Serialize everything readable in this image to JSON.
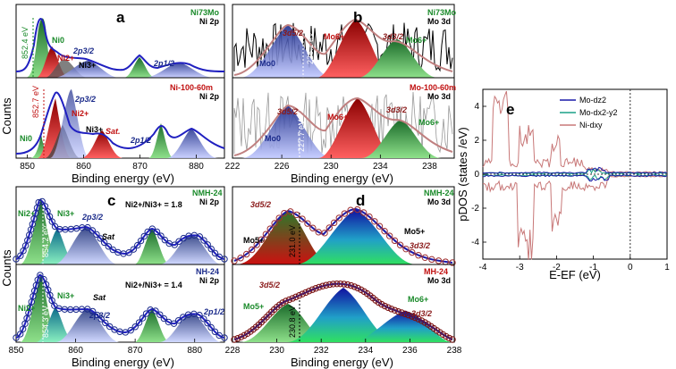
{
  "figure": {
    "counts_label": "Counts",
    "xlabel_be": "Binding energy (eV)"
  },
  "chart_data": [
    {
      "id": "a_top",
      "type": "line",
      "xlim": [
        848,
        885
      ],
      "reversed": false,
      "panel_label": "a",
      "sample": "Ni73Mo",
      "spectrum": "Ni 2p",
      "fit_peaks": [
        {
          "name": "Ni0",
          "center": 852.3
        },
        {
          "name": "Ni2+",
          "center": 853.8
        },
        {
          "name": "Ni3+",
          "center": 855.6
        },
        {
          "name": "2p3/2 sat",
          "center": 858.5
        },
        {
          "name": "2p1/2",
          "center": 869.6
        },
        {
          "name": "2p1/2 sat",
          "center": 876.0
        }
      ],
      "annotations": [
        "852.4 eV",
        "Ni0",
        "2p3/2",
        "Ni2+",
        "Ni3+",
        "2p1/2"
      ]
    },
    {
      "id": "a_bot",
      "type": "line",
      "xlim": [
        848,
        885
      ],
      "sample": "Ni-100-60m",
      "spectrum": "Ni 2p",
      "ticks": [
        850,
        860,
        870,
        880
      ],
      "fit_peaks": [
        {
          "name": "Ni0",
          "center": 852.7
        },
        {
          "name": "Ni2+",
          "center": 855.6
        },
        {
          "name": "Ni3+",
          "center": 857.0
        },
        {
          "name": "Sat.",
          "center": 861.2
        },
        {
          "name": "2p1/2",
          "center": 873.5
        },
        {
          "name": "2p1/2 sat",
          "center": 879.4
        }
      ],
      "annotations": [
        "852.7 eV",
        "Ni0",
        "2p3/2",
        "Ni2+",
        "Ni3+",
        "Sat.",
        "2p1/2"
      ]
    },
    {
      "id": "b_top",
      "type": "line",
      "xlim": [
        222,
        240
      ],
      "panel_label": "b",
      "sample": "Ni73Mo",
      "spectrum": "Mo 3d",
      "fit_peaks": [
        {
          "name": "Mo0",
          "center": 227.9
        },
        {
          "name": "Mo6+ 3d5/2",
          "center": 232.6
        },
        {
          "name": "Mo6+ 3d3/2",
          "center": 235.5
        }
      ],
      "annotations": [
        "Mo0",
        "3d5/2",
        "228.1 eV",
        "Mo6+",
        "3d3/2",
        "Mo6+"
      ]
    },
    {
      "id": "b_bot",
      "type": "line",
      "xlim": [
        222,
        240
      ],
      "sample": "Mo-100-60m",
      "spectrum": "Mo 3d",
      "ticks": [
        222,
        226,
        230,
        234,
        238
      ],
      "fit_peaks": [
        {
          "name": "Mo0",
          "center": 227.5
        },
        {
          "name": "Mo6+ 3d5/2",
          "center": 232.6
        },
        {
          "name": "Mo6+ 3d3/2",
          "center": 235.7
        }
      ],
      "annotations": [
        "3d5/2",
        "Mo0",
        "227.7 eV",
        "Mo6+",
        "3d3/2",
        "Mo6+"
      ]
    },
    {
      "id": "c_top",
      "type": "line",
      "xlim": [
        850,
        885
      ],
      "panel_label": "c",
      "sample": "NMH-24",
      "spectrum": "Ni 2p",
      "ratio_text": "Ni2+/Ni3+ = 1.8",
      "fit_peaks": [
        {
          "name": "Ni2+",
          "center": 854.0
        },
        {
          "name": "Ni3+",
          "center": 856.0
        },
        {
          "name": "Sat",
          "center": 861.0
        },
        {
          "name": "2p1/2",
          "center": 872.2
        },
        {
          "name": "2p1/2 sat",
          "center": 878.8
        }
      ],
      "annotations": [
        "Ni2+",
        "Ni3+",
        "2p3/2",
        "Sat",
        "854.2 eV"
      ]
    },
    {
      "id": "c_bot",
      "type": "line",
      "xlim": [
        850,
        885
      ],
      "sample": "NH-24",
      "spectrum": "Ni 2p",
      "ratio_text": "Ni2+/Ni3+ = 1.4",
      "ticks": [
        850,
        860,
        870,
        880
      ],
      "fit_peaks": [
        {
          "name": "Ni2+",
          "center": 854.0
        },
        {
          "name": "Ni3+",
          "center": 855.7
        },
        {
          "name": "Sat",
          "center": 861.0
        },
        {
          "name": "2p1/2",
          "center": 872.0
        },
        {
          "name": "2p1/2 sat",
          "center": 879.0
        }
      ],
      "annotations": [
        "Ni3+",
        "Sat",
        "Ni2+",
        "2p3/2",
        "2p1/2",
        "854.3 eV"
      ]
    },
    {
      "id": "d_top",
      "type": "scatter",
      "xlim": [
        228,
        238
      ],
      "panel_label": "d",
      "sample": "NMH-24",
      "spectrum": "Mo 3d",
      "fit_peaks": [
        {
          "name": "Mo5+ 3d5/2",
          "center": 230.9
        },
        {
          "name": "Mo5+ 3d3/2",
          "center": 234.0
        }
      ],
      "annotations": [
        "3d5/2",
        "Mo5+",
        "231.0 eV",
        "Mo5+",
        "3d3/2"
      ]
    },
    {
      "id": "d_bot",
      "type": "scatter",
      "xlim": [
        228,
        238
      ],
      "sample": "MH-24",
      "spectrum": "Mo 3d",
      "ticks": [
        228,
        230,
        232,
        234,
        236,
        238
      ],
      "fit_peaks": [
        {
          "name": "Mo5+",
          "center": 230.9
        },
        {
          "name": "Mo6+ 3d5/2",
          "center": 232.8
        },
        {
          "name": "Mo6+ 3d3/2",
          "center": 235.3
        }
      ],
      "annotations": [
        "3d5/2",
        "Mo5+",
        "230.8 eV",
        "Mo6+",
        "3d3/2"
      ]
    },
    {
      "id": "e",
      "type": "line",
      "panel_label": "e",
      "xlabel": "E-EF (eV)",
      "ylabel": "pDOS (states /eV)",
      "xlim": [
        -4,
        1
      ],
      "ylim": [
        -5,
        5
      ],
      "xticks": [
        -4,
        -3,
        -2,
        -1,
        0,
        1
      ],
      "yticks": [
        -4,
        -2,
        0,
        2,
        4
      ],
      "legend": [
        {
          "name": "Mo-dz2",
          "color": "#1a1aa8"
        },
        {
          "name": "Mo-dx2-y2",
          "color": "#1aa087"
        },
        {
          "name": "Ni-dxy",
          "color": "#c87878"
        }
      ]
    }
  ]
}
